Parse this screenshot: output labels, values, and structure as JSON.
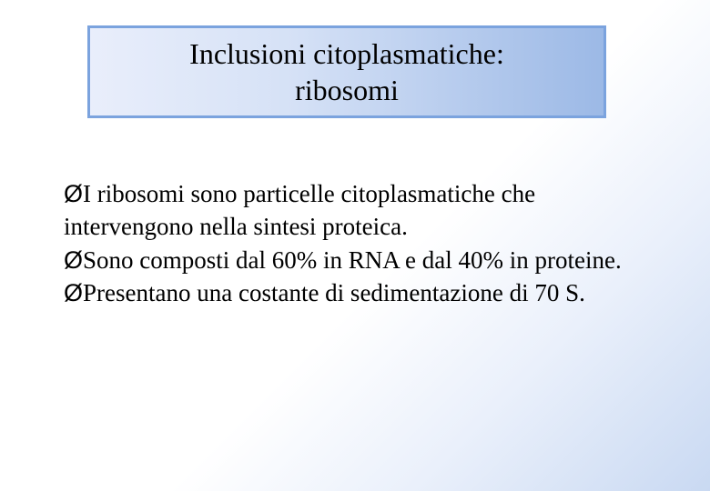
{
  "slide": {
    "title_line1": "Inclusioni citoplasmatiche:",
    "title_line2": "ribosomi",
    "bullets": [
      "I ribosomi sono particelle citoplasmatiche che intervengono nella sintesi proteica.",
      "Sono composti dal 60% in RNA e dal 40% in proteine.",
      "Presentano una costante di sedimentazione di 70 S."
    ],
    "bullet_glyph": "Ø"
  },
  "styling": {
    "title_border_color": "#7ba3de",
    "title_gradient_start": "#e9eefb",
    "title_gradient_end": "#9cb9e6",
    "title_fontsize": 32,
    "body_fontsize": 27,
    "body_text_color": "#000000",
    "slide_bg_gradient": [
      "#ffffff",
      "#eaf0fb",
      "#c9d9f2"
    ],
    "font_family": "Times New Roman"
  }
}
